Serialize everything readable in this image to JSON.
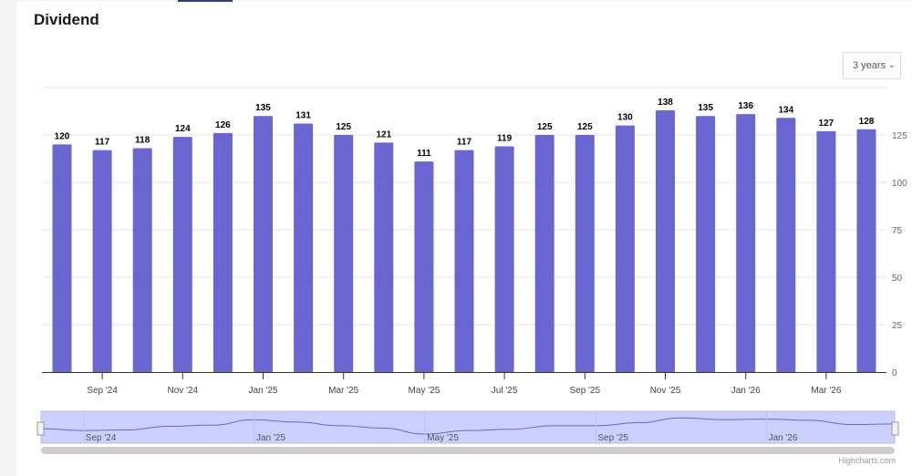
{
  "header": {
    "title": "Dividend"
  },
  "range_selector": {
    "label": "3 years",
    "icon": "chevron-down-icon"
  },
  "credit": "Highcharts.com",
  "colors": {
    "bar": "#6a66d1",
    "navigator_fill": "#ccd0ff",
    "navigator_line": "#6a66d1"
  },
  "chart_data": {
    "type": "bar",
    "title": "Dividend",
    "categories": [
      "Aug '24",
      "Sep '24",
      "Oct '24",
      "Nov '24",
      "Dec '24",
      "Jan '25",
      "Feb '25",
      "Mar '25",
      "Apr '25",
      "May '25",
      "Jun '25",
      "Jul '25",
      "Aug '25",
      "Sep '25",
      "Oct '25",
      "Nov '25",
      "Dec '25",
      "Jan '26",
      "Feb '26",
      "Mar '26",
      "Apr '26"
    ],
    "values": [
      120,
      117,
      118,
      124,
      126,
      135,
      131,
      125,
      121,
      111,
      117,
      119,
      125,
      125,
      130,
      138,
      135,
      136,
      134,
      127,
      128
    ],
    "x_tick_labels": [
      "Sep '24",
      "Nov '24",
      "Jan '25",
      "Mar '25",
      "May '25",
      "Jul '25",
      "Sep '25",
      "Nov '25",
      "Jan '26",
      "Mar '26"
    ],
    "y_ticks": [
      0,
      25,
      50,
      75,
      100,
      125
    ],
    "ylim": [
      0,
      150
    ],
    "grid": true,
    "data_labels": true,
    "navigator_labels": [
      "Sep '24",
      "Jan '25",
      "May '25",
      "Sep '25",
      "Jan '26"
    ]
  }
}
